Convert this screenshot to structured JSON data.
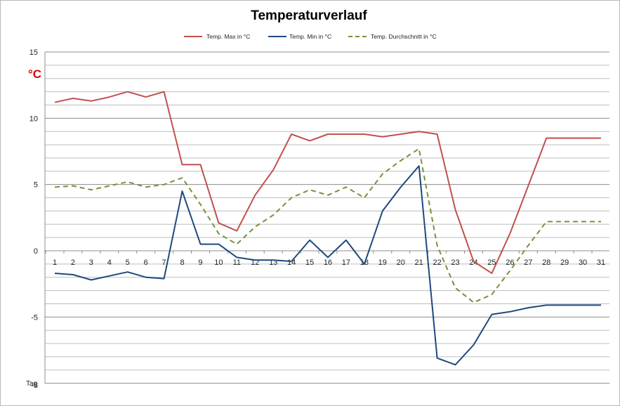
{
  "chart_data": {
    "type": "line",
    "title": "Temperaturverlauf",
    "ylabel": "°C",
    "xlabel": "Tag",
    "ylim": [
      -10,
      15
    ],
    "yticks": [
      -5,
      0,
      5,
      10,
      15
    ],
    "bottom_tick_label": "-8",
    "ygrid_step": 1,
    "grid": true,
    "legend_position": "top",
    "x": [
      1,
      2,
      3,
      4,
      5,
      6,
      7,
      8,
      9,
      10,
      11,
      12,
      13,
      14,
      15,
      16,
      17,
      18,
      19,
      20,
      21,
      22,
      23,
      24,
      25,
      26,
      27,
      28,
      29,
      30,
      31
    ],
    "series": [
      {
        "name": "Temp. Max in °C",
        "color": "#c0504d",
        "style": "solid",
        "values": [
          11.2,
          11.5,
          11.3,
          11.6,
          12.0,
          11.6,
          12.0,
          6.5,
          6.5,
          2.1,
          1.5,
          4.2,
          6.1,
          8.8,
          8.3,
          8.8,
          8.8,
          8.8,
          8.6,
          8.8,
          9.0,
          8.8,
          3.1,
          -0.8,
          -1.7,
          1.3,
          4.9,
          8.5,
          8.5,
          8.5,
          8.5
        ]
      },
      {
        "name": "Temp. Min in °C",
        "color": "#1f497d",
        "style": "solid",
        "values": [
          -1.7,
          -1.8,
          -2.2,
          -1.9,
          -1.6,
          -2.0,
          -2.1,
          4.5,
          0.5,
          0.5,
          -0.5,
          -0.7,
          -0.7,
          -0.8,
          0.8,
          -0.5,
          0.8,
          -1.0,
          3.0,
          4.8,
          6.4,
          -8.1,
          -8.6,
          -7.1,
          -4.8,
          -4.6,
          -4.3,
          -4.1,
          -4.1,
          -4.1,
          -4.1
        ]
      },
      {
        "name": "Temp. Durchschnitt in °C",
        "color": "#76923c",
        "style": "dashed",
        "values": [
          4.8,
          4.9,
          4.6,
          4.9,
          5.2,
          4.8,
          5.0,
          5.5,
          3.5,
          1.3,
          0.5,
          1.8,
          2.7,
          4.0,
          4.6,
          4.2,
          4.8,
          4.0,
          5.8,
          6.8,
          7.7,
          0.4,
          -2.8,
          -3.9,
          -3.3,
          -1.5,
          0.4,
          2.2,
          2.2,
          2.2,
          2.2
        ]
      }
    ]
  }
}
